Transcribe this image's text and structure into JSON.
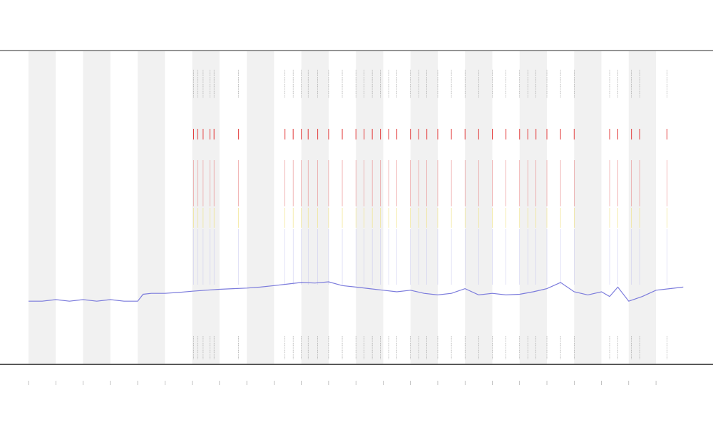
{
  "chart_data": {
    "type": "line",
    "title": "",
    "xlabel": "",
    "ylabel": "",
    "xlim": [
      0,
      24.2
    ],
    "ylim": [
      0,
      1
    ],
    "grid": false,
    "legend": "none",
    "x_ticks": [
      0,
      1,
      2,
      3,
      4,
      5,
      6,
      7,
      8,
      9,
      10,
      11,
      12,
      13,
      14,
      15,
      16,
      17,
      18,
      19,
      20,
      21,
      22,
      23
    ],
    "shaded_bands": [
      [
        0,
        1
      ],
      [
        2,
        3
      ],
      [
        4,
        5
      ],
      [
        6,
        7
      ],
      [
        8,
        9
      ],
      [
        10,
        11
      ],
      [
        12,
        13
      ],
      [
        14,
        15
      ],
      [
        16,
        17
      ],
      [
        18,
        19
      ],
      [
        20,
        21
      ],
      [
        22,
        23
      ]
    ],
    "series": [
      {
        "color": "#7b7bdc",
        "x": [
          0.0,
          0.5,
          1.0,
          1.5,
          2.0,
          2.5,
          3.0,
          3.5,
          4.0,
          4.2,
          4.5,
          5.0,
          5.5,
          6.0,
          6.5,
          7.0,
          7.5,
          8.0,
          8.5,
          9.0,
          9.5,
          10.0,
          10.5,
          11.0,
          11.5,
          12.0,
          12.5,
          13.0,
          13.5,
          14.0,
          14.5,
          15.0,
          15.5,
          16.0,
          16.5,
          17.0,
          17.5,
          18.0,
          18.5,
          19.0,
          19.5,
          20.0,
          20.5,
          21.0,
          21.3,
          21.6,
          22.0,
          22.5,
          23.0,
          23.5,
          24.0
        ],
        "values": [
          0.2,
          0.2,
          0.205,
          0.2,
          0.205,
          0.2,
          0.205,
          0.2,
          0.2,
          0.222,
          0.225,
          0.225,
          0.228,
          0.232,
          0.235,
          0.238,
          0.24,
          0.242,
          0.245,
          0.25,
          0.255,
          0.26,
          0.258,
          0.262,
          0.25,
          0.245,
          0.24,
          0.235,
          0.23,
          0.235,
          0.225,
          0.22,
          0.225,
          0.24,
          0.22,
          0.225,
          0.22,
          0.222,
          0.23,
          0.24,
          0.26,
          0.23,
          0.22,
          0.23,
          0.215,
          0.245,
          0.2,
          0.215,
          0.235,
          0.24,
          0.245
        ]
      }
    ],
    "event_columns": [
      6.05,
      6.2,
      6.4,
      6.65,
      6.8,
      7.7,
      9.4,
      9.7,
      10.0,
      10.25,
      10.6,
      11.0,
      11.5,
      12.0,
      12.3,
      12.6,
      12.9,
      13.2,
      13.5,
      14.0,
      14.3,
      14.6,
      15.0,
      15.5,
      16.0,
      16.5,
      17.0,
      17.5,
      18.0,
      18.3,
      18.6,
      19.0,
      19.5,
      20.0,
      21.3,
      21.6,
      22.1,
      22.4,
      23.4
    ]
  }
}
